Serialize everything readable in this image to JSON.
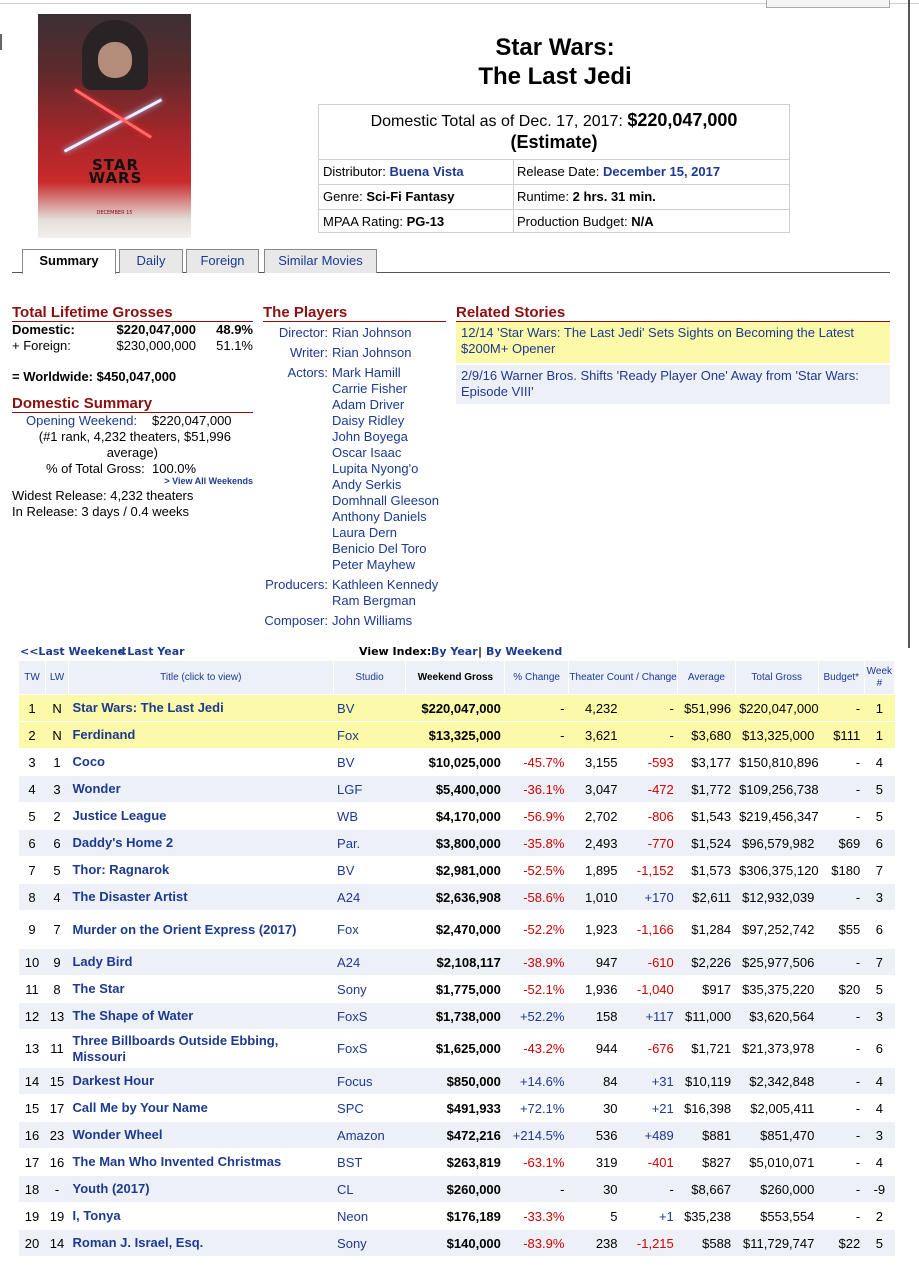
{
  "movie": {
    "title_line1": "Star Wars:",
    "title_line2": "The Last Jedi",
    "gross_label": "Domestic Total as of Dec. 17, 2017:",
    "gross_value": "$220,047,000",
    "gross_note": "(Estimate)",
    "poster": {
      "logo_line1": "STAR",
      "logo_line2": "WARS",
      "date": "DECEMBER 15"
    }
  },
  "info": {
    "distributor_label": "Distributor:",
    "distributor": "Buena Vista",
    "release_label": "Release Date:",
    "release": "December 15, 2017",
    "genre_label": "Genre:",
    "genre": "Sci-Fi Fantasy",
    "runtime_label": "Runtime:",
    "runtime": "2 hrs. 31 min.",
    "mpaa_label": "MPAA Rating:",
    "mpaa": "PG-13",
    "budget_label": "Production Budget:",
    "budget": "N/A"
  },
  "tabs": [
    "Summary",
    "Daily",
    "Foreign",
    "Similar Movies"
  ],
  "lifetime": {
    "heading": "Total Lifetime Grosses",
    "domestic_label": "Domestic:",
    "domestic_value": "$220,047,000",
    "domestic_pct": "48.9%",
    "foreign_label": "+ Foreign:",
    "foreign_value": "$230,000,000",
    "foreign_pct": "51.1%",
    "worldwide": "= Worldwide: $450,047,000"
  },
  "domestic_summary": {
    "heading": "Domestic Summary",
    "opening_label": "Opening Weekend:",
    "opening_value": "$220,047,000",
    "opening_detail1": "(#1 rank, 4,232 theaters, $51,996",
    "opening_detail2": "average)",
    "pct_label": "% of Total Gross:",
    "pct_value": "100.0%",
    "view_all": "> View All Weekends",
    "widest": "Widest Release: 4,232 theaters",
    "in_release": "In Release: 3 days / 0.4 weeks"
  },
  "players": {
    "heading": "The Players",
    "director_label": "Director:",
    "director": "Rian Johnson",
    "writer_label": "Writer:",
    "writer": "Rian Johnson",
    "actors_label": "Actors:",
    "actors": [
      "Mark Hamill",
      "Carrie Fisher",
      "Adam Driver",
      "Daisy Ridley",
      "John Boyega",
      "Oscar Isaac",
      "Lupita Nyong'o",
      "Andy Serkis",
      "Domhnall Gleeson",
      "Anthony Daniels",
      "Laura Dern",
      "Benicio Del Toro",
      "Peter Mayhew"
    ],
    "producers_label": "Producers:",
    "producers": [
      "Kathleen Kennedy",
      "Ram Bergman"
    ],
    "composer_label": "Composer:",
    "composer": "John Williams"
  },
  "stories": {
    "heading": "Related Stories",
    "items": [
      {
        "text": "12/14 'Star Wars: The Last Jedi' Sets Sights on Becoming the Latest $200M+ Opener",
        "bg": "#fcf9a8"
      },
      {
        "text": "2/9/16 Warner Bros. Shifts 'Ready Player One' Away from 'Star Wars: Episode VIII'",
        "bg": "#eef0f8"
      }
    ]
  },
  "chart_nav": {
    "last_weekend": "<<Last Weekend",
    "last_year": "<Last Year",
    "view_index": "View Index:",
    "by_year": "By Year",
    "sep": "|",
    "by_weekend": "By Weekend"
  },
  "chart_headers": [
    "TW",
    "LW",
    "Title (click to view)",
    "Studio",
    "Weekend Gross",
    "% Change",
    "Theater Count / Change",
    "Average",
    "Total Gross",
    "Budget*",
    "Week #"
  ],
  "chart_rows": [
    [
      "1",
      "N",
      "Star Wars: The Last Jedi",
      "BV",
      "$220,047,000",
      "-",
      "4,232",
      "-",
      "$51,996",
      "$220,047,000",
      "-",
      "1"
    ],
    [
      "2",
      "N",
      "Ferdinand",
      "Fox",
      "$13,325,000",
      "-",
      "3,621",
      "-",
      "$3,680",
      "$13,325,000",
      "$111",
      "1"
    ],
    [
      "3",
      "1",
      "Coco",
      "BV",
      "$10,025,000",
      "-45.7%",
      "3,155",
      "-593",
      "$3,177",
      "$150,810,896",
      "-",
      "4"
    ],
    [
      "4",
      "3",
      "Wonder",
      "LGF",
      "$5,400,000",
      "-36.1%",
      "3,047",
      "-472",
      "$1,772",
      "$109,256,738",
      "-",
      "5"
    ],
    [
      "5",
      "2",
      "Justice League",
      "WB",
      "$4,170,000",
      "-56.9%",
      "2,702",
      "-806",
      "$1,543",
      "$219,456,347",
      "-",
      "5"
    ],
    [
      "6",
      "6",
      "Daddy's Home 2",
      "Par.",
      "$3,800,000",
      "-35.8%",
      "2,493",
      "-770",
      "$1,524",
      "$96,579,982",
      "$69",
      "6"
    ],
    [
      "7",
      "5",
      "Thor: Ragnarok",
      "BV",
      "$2,981,000",
      "-52.5%",
      "1,895",
      "-1,152",
      "$1,573",
      "$306,375,120",
      "$180",
      "7"
    ],
    [
      "8",
      "4",
      "The Disaster Artist",
      "A24",
      "$2,636,908",
      "-58.6%",
      "1,010",
      "+170",
      "$2,611",
      "$12,932,039",
      "-",
      "3"
    ],
    [
      "9",
      "7",
      "Murder on the Orient Express (2017)",
      "Fox",
      "$2,470,000",
      "-52.2%",
      "1,923",
      "-1,166",
      "$1,284",
      "$97,252,742",
      "$55",
      "6"
    ],
    [
      "10",
      "9",
      "Lady Bird",
      "A24",
      "$2,108,117",
      "-38.9%",
      "947",
      "-610",
      "$2,226",
      "$25,977,506",
      "-",
      "7"
    ],
    [
      "11",
      "8",
      "The Star",
      "Sony",
      "$1,775,000",
      "-52.1%",
      "1,936",
      "-1,040",
      "$917",
      "$35,375,220",
      "$20",
      "5"
    ],
    [
      "12",
      "13",
      "The Shape of Water",
      "FoxS",
      "$1,738,000",
      "+52.2%",
      "158",
      "+117",
      "$11,000",
      "$3,620,564",
      "-",
      "3"
    ],
    [
      "13",
      "11",
      "Three Billboards Outside Ebbing, Missouri",
      "FoxS",
      "$1,625,000",
      "-43.2%",
      "944",
      "-676",
      "$1,721",
      "$21,373,978",
      "-",
      "6"
    ],
    [
      "14",
      "15",
      "Darkest Hour",
      "Focus",
      "$850,000",
      "+14.6%",
      "84",
      "+31",
      "$10,119",
      "$2,342,848",
      "-",
      "4"
    ],
    [
      "15",
      "17",
      "Call Me by Your Name",
      "SPC",
      "$491,933",
      "+72.1%",
      "30",
      "+21",
      "$16,398",
      "$2,005,411",
      "-",
      "4"
    ],
    [
      "16",
      "23",
      "Wonder Wheel",
      "Amazon",
      "$472,216",
      "+214.5%",
      "536",
      "+489",
      "$881",
      "$851,470",
      "-",
      "3"
    ],
    [
      "17",
      "16",
      "The Man Who Invented Christmas",
      "BST",
      "$263,819",
      "-63.1%",
      "319",
      "-401",
      "$827",
      "$5,010,071",
      "-",
      "4"
    ],
    [
      "18",
      "-",
      "Youth (2017)",
      "CL",
      "$260,000",
      "-",
      "30",
      "-",
      "$8,667",
      "$260,000",
      "-",
      "-9"
    ],
    [
      "19",
      "19",
      "I, Tonya",
      "Neon",
      "$176,189",
      "-33.3%",
      "5",
      "+1",
      "$35,238",
      "$553,554",
      "-",
      "2"
    ],
    [
      "20",
      "14",
      "Roman J. Israel, Esq.",
      "Sony",
      "$140,000",
      "-83.9%",
      "238",
      "-1,215",
      "$588",
      "$11,729,747",
      "$22",
      "5"
    ]
  ]
}
